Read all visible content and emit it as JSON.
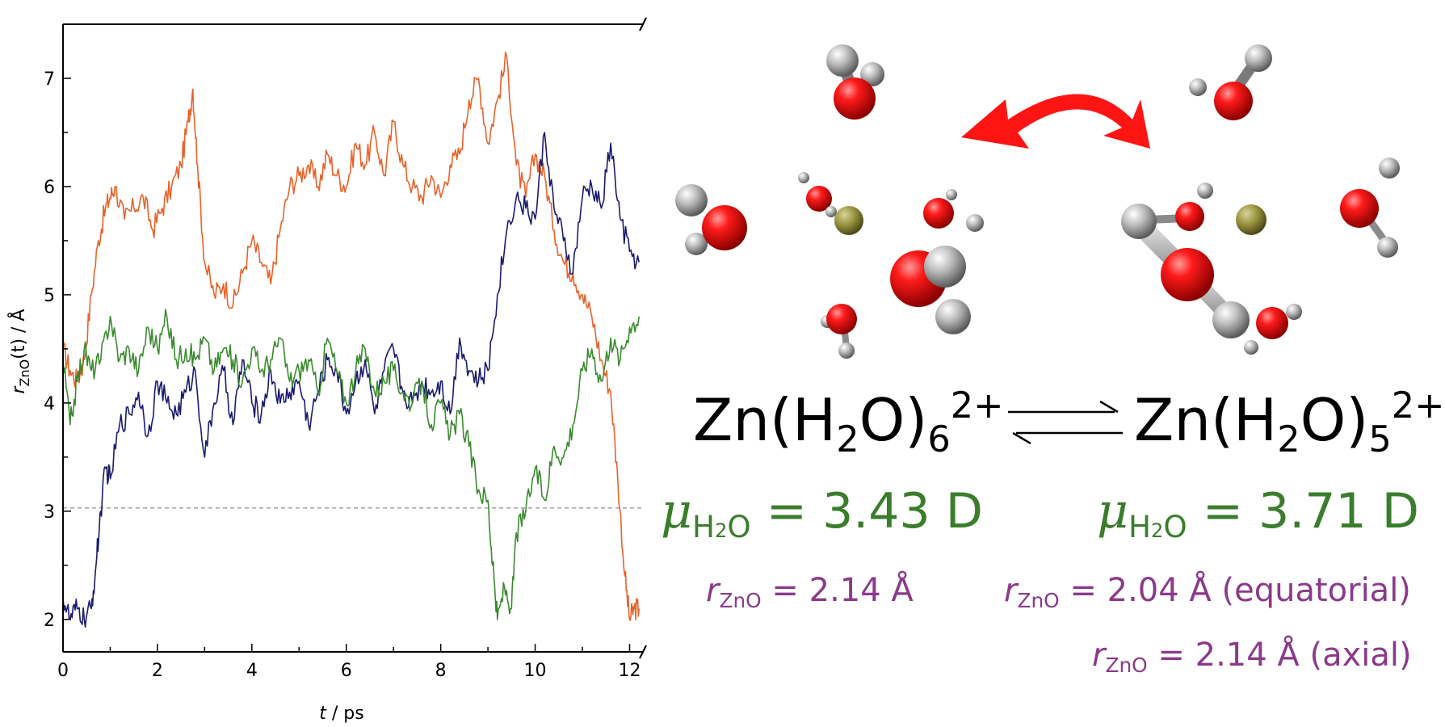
{
  "chart_data": {
    "type": "line",
    "xlabel_var": "t",
    "xlabel_unit": "ps",
    "ylabel_var": "r",
    "ylabel_sub": "ZnO",
    "ylabel_arg": "(t)",
    "ylabel_unit": "Å",
    "xlim": [
      0,
      12.3
    ],
    "ylim": [
      1.7,
      7.5
    ],
    "x_ticks": [
      "0",
      "2",
      "4",
      "6",
      "8",
      "10",
      "12"
    ],
    "y_ticks": [
      "2",
      "3",
      "4",
      "5",
      "6",
      "7"
    ],
    "x_tick_values": [
      0,
      2,
      4,
      6,
      8,
      10,
      12
    ],
    "y_tick_values": [
      2,
      3,
      4,
      5,
      6,
      7
    ],
    "x_minor_step": 1,
    "y_minor_step": 0.5,
    "reference_line": {
      "y": 3.03,
      "style": "dashed",
      "color": "#999999"
    },
    "series": [
      {
        "color": "#e8622a",
        "x": [
          0,
          0.15,
          0.3,
          0.45,
          0.6,
          0.75,
          0.9,
          1.0,
          1.1,
          1.3,
          1.5,
          1.7,
          1.9,
          2.1,
          2.3,
          2.5,
          2.65,
          2.75,
          2.85,
          3.0,
          3.2,
          3.4,
          3.6,
          3.8,
          4.0,
          4.2,
          4.4,
          4.6,
          4.8,
          5.0,
          5.2,
          5.4,
          5.6,
          5.8,
          6.0,
          6.2,
          6.4,
          6.6,
          6.8,
          7.0,
          7.2,
          7.4,
          7.6,
          7.8,
          8.0,
          8.2,
          8.4,
          8.6,
          8.8,
          9.0,
          9.2,
          9.4,
          9.6,
          9.8,
          10.0,
          10.2,
          10.4,
          10.6,
          10.8,
          11.0,
          11.2,
          11.4,
          11.6,
          11.75,
          11.9,
          12.0,
          12.1,
          12.2
        ],
        "y": [
          4.5,
          4.3,
          4.2,
          4.4,
          5.0,
          5.5,
          5.8,
          5.9,
          6.0,
          5.7,
          5.8,
          5.9,
          5.6,
          5.8,
          6.0,
          6.2,
          6.6,
          6.9,
          6.2,
          5.3,
          5.0,
          5.1,
          4.9,
          5.2,
          5.5,
          5.3,
          5.1,
          5.6,
          6.0,
          6.1,
          6.2,
          6.0,
          6.3,
          6.1,
          6.0,
          6.4,
          6.2,
          6.5,
          6.1,
          6.6,
          6.2,
          6.0,
          5.9,
          6.1,
          5.9,
          6.2,
          6.3,
          6.8,
          7.0,
          6.4,
          6.8,
          7.2,
          6.2,
          5.9,
          6.3,
          6.1,
          5.6,
          5.3,
          5.2,
          5.0,
          4.8,
          4.4,
          4.1,
          3.3,
          2.4,
          2.0,
          2.1,
          2.1
        ]
      },
      {
        "color": "#1a1a6e",
        "x": [
          0,
          0.15,
          0.3,
          0.45,
          0.6,
          0.7,
          0.8,
          0.9,
          1.0,
          1.2,
          1.4,
          1.6,
          1.8,
          2.0,
          2.2,
          2.4,
          2.6,
          2.8,
          3.0,
          3.2,
          3.4,
          3.6,
          3.8,
          4.0,
          4.2,
          4.4,
          4.6,
          4.8,
          5.0,
          5.2,
          5.4,
          5.6,
          5.8,
          6.0,
          6.2,
          6.4,
          6.6,
          6.8,
          7.0,
          7.2,
          7.4,
          7.6,
          7.8,
          8.0,
          8.2,
          8.4,
          8.6,
          8.8,
          9.0,
          9.2,
          9.4,
          9.6,
          9.8,
          10.0,
          10.2,
          10.4,
          10.6,
          10.8,
          11.0,
          11.2,
          11.4,
          11.6,
          11.8,
          12.0,
          12.2
        ],
        "y": [
          2.2,
          2.0,
          2.1,
          2.0,
          2.1,
          2.5,
          3.0,
          3.4,
          3.3,
          3.8,
          3.9,
          4.1,
          3.7,
          4.2,
          4.0,
          3.9,
          4.1,
          4.3,
          3.5,
          4.0,
          4.3,
          3.8,
          4.4,
          4.0,
          3.9,
          4.3,
          4.0,
          4.1,
          4.2,
          3.8,
          4.1,
          4.4,
          4.3,
          3.9,
          4.2,
          4.4,
          3.9,
          4.3,
          4.5,
          4.1,
          4.0,
          4.2,
          4.1,
          4.2,
          3.9,
          4.6,
          4.3,
          4.2,
          4.3,
          5.0,
          5.6,
          5.9,
          5.8,
          5.7,
          6.5,
          5.8,
          5.5,
          5.2,
          5.9,
          6.0,
          5.8,
          6.4,
          5.7,
          5.4,
          5.3
        ]
      },
      {
        "color": "#3a8a2e",
        "x": [
          0,
          0.15,
          0.3,
          0.45,
          0.6,
          0.8,
          1.0,
          1.2,
          1.4,
          1.6,
          1.8,
          2.0,
          2.2,
          2.4,
          2.6,
          2.8,
          3.0,
          3.2,
          3.4,
          3.6,
          3.8,
          4.0,
          4.2,
          4.4,
          4.6,
          4.8,
          5.0,
          5.2,
          5.4,
          5.6,
          5.8,
          6.0,
          6.2,
          6.4,
          6.6,
          6.8,
          7.0,
          7.2,
          7.4,
          7.6,
          7.8,
          8.0,
          8.2,
          8.4,
          8.6,
          8.8,
          9.0,
          9.1,
          9.2,
          9.35,
          9.5,
          9.6,
          9.8,
          10.0,
          10.2,
          10.4,
          10.6,
          10.8,
          11.0,
          11.2,
          11.4,
          11.6,
          11.8,
          12.0,
          12.2
        ],
        "y": [
          4.4,
          3.8,
          4.2,
          4.5,
          4.3,
          4.4,
          4.8,
          4.4,
          4.5,
          4.3,
          4.7,
          4.5,
          4.8,
          4.4,
          4.5,
          4.4,
          4.6,
          4.3,
          4.5,
          4.4,
          4.2,
          4.5,
          4.3,
          4.4,
          4.6,
          4.2,
          4.3,
          4.4,
          4.1,
          4.6,
          4.3,
          4.0,
          4.3,
          4.5,
          4.1,
          4.2,
          4.3,
          4.1,
          4.0,
          4.2,
          3.8,
          4.0,
          3.7,
          3.9,
          3.6,
          3.2,
          3.1,
          2.5,
          2.0,
          2.3,
          2.1,
          2.8,
          3.0,
          3.4,
          3.1,
          3.6,
          3.5,
          3.8,
          4.3,
          4.5,
          4.2,
          4.6,
          4.4,
          4.7,
          4.8
        ]
      }
    ]
  },
  "equation": {
    "left_prefix": "Zn(H",
    "left_sub": "2",
    "left_mid": "O)",
    "left_count": "6",
    "left_charge": "2+",
    "right_prefix": "Zn(H",
    "right_sub": "2",
    "right_mid": "O)",
    "right_count": "5",
    "right_charge": "2+"
  },
  "dipole_left": {
    "symbol": "μ",
    "sub_prefix": "H",
    "sub_2": "2",
    "sub_suffix": "O",
    "value": "= 3.43 D"
  },
  "dipole_right": {
    "symbol": "μ",
    "sub_prefix": "H",
    "sub_2": "2",
    "sub_suffix": "O",
    "value": "= 3.71 D"
  },
  "dist_left": {
    "symbol": "r",
    "sub": "ZnO",
    "value": "= 2.14 Å"
  },
  "dist_right_eq": {
    "symbol": "r",
    "sub": "ZnO",
    "value": "= 2.04 Å (equatorial)"
  },
  "dist_right_ax": {
    "symbol": "r",
    "sub": "ZnO",
    "value": "= 2.14 Å (axial)"
  },
  "colors": {
    "dipole_text": "#3a7d2c",
    "distance_text": "#8a3a8a",
    "oxygen": "#ee1010",
    "hydrogen": "#c8c8c8",
    "zinc": "#8f8a3a",
    "arrow": "#ff1414"
  }
}
